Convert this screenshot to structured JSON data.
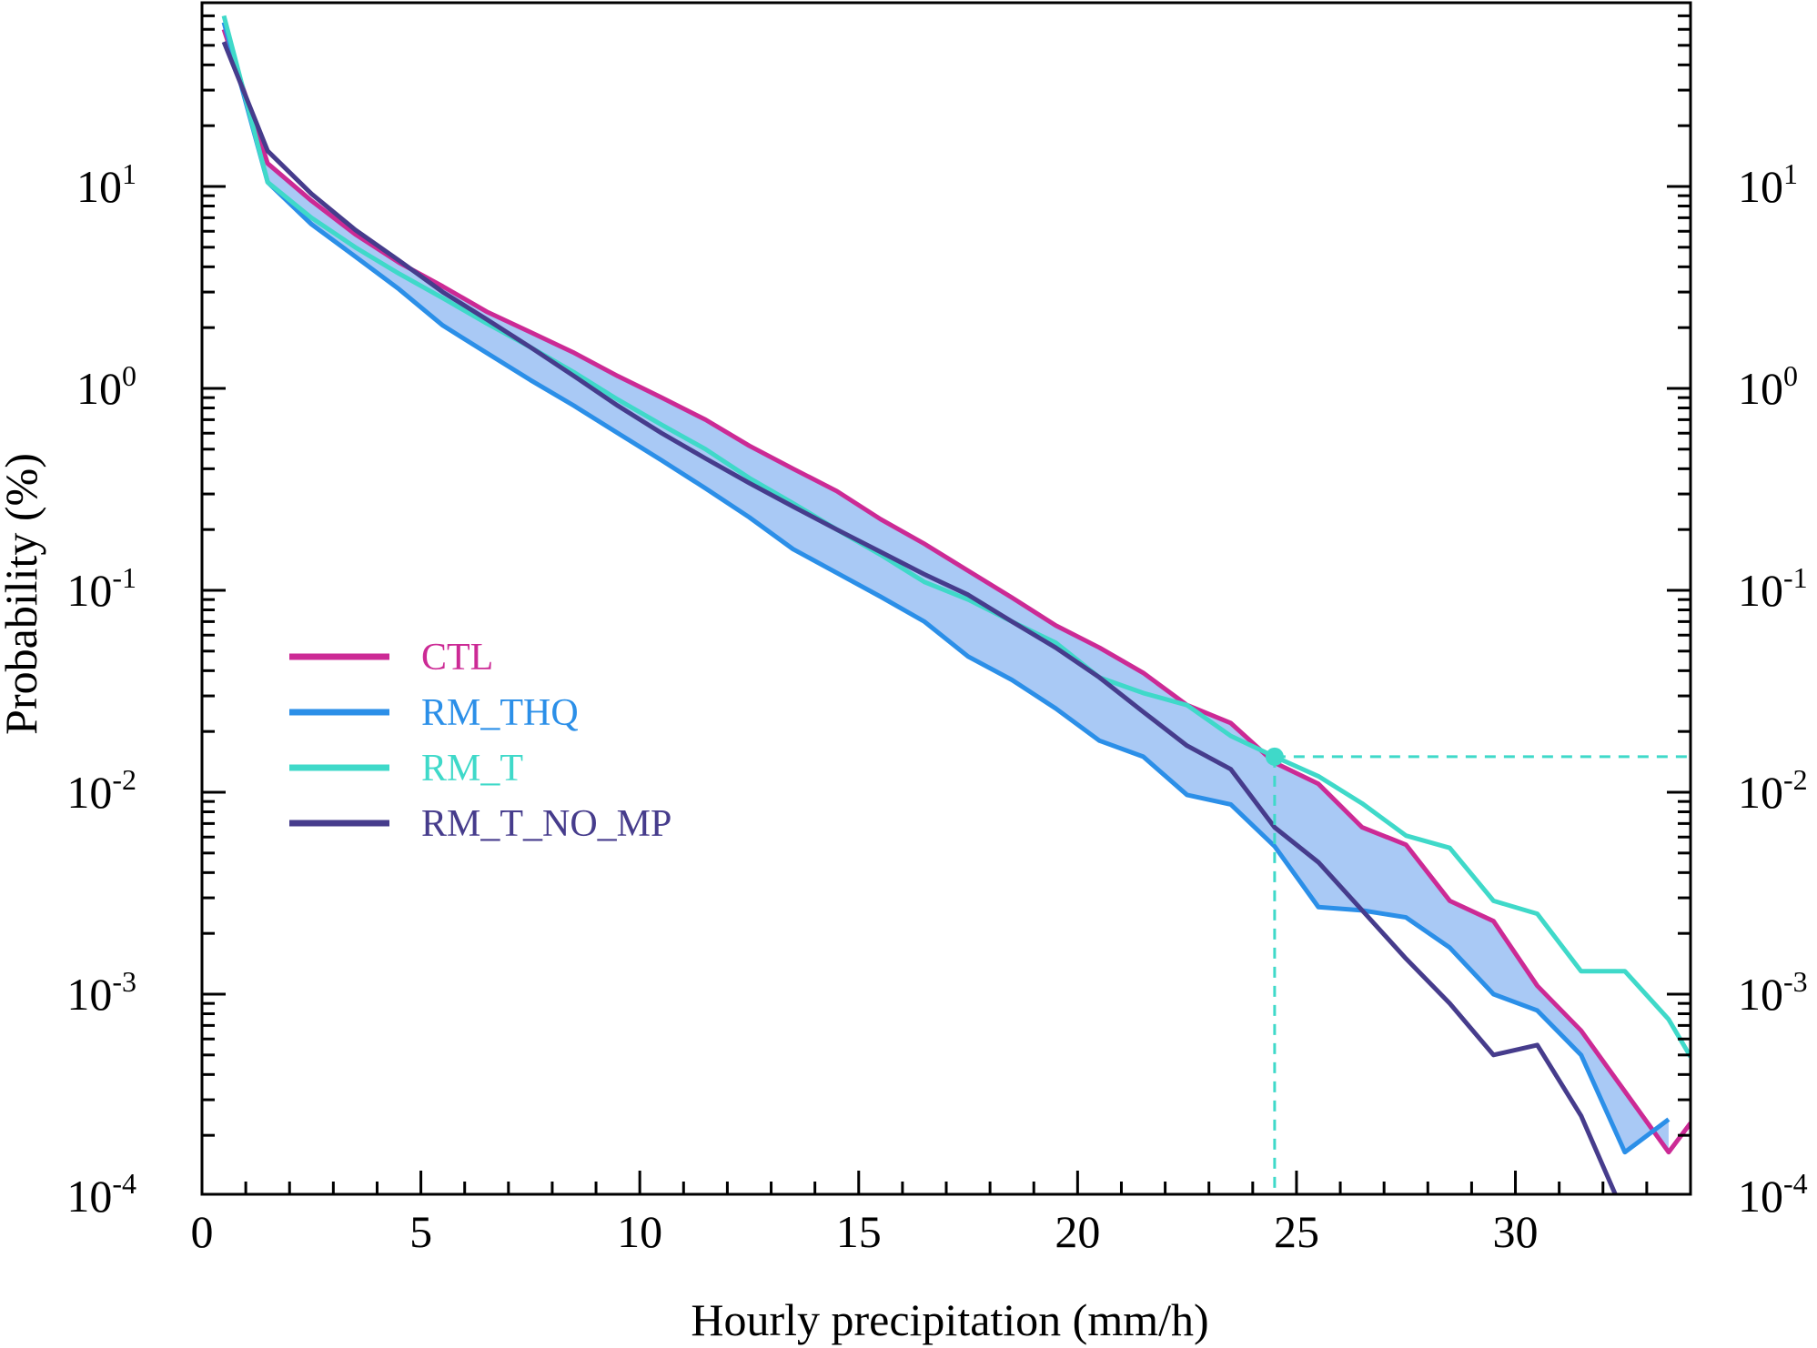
{
  "chart_data": {
    "type": "line",
    "xlabel": "Hourly precipitation (mm/h)",
    "ylabel": "Probability (%)",
    "xlim": [
      0,
      34
    ],
    "ylim": [
      0.0001,
      70
    ],
    "y_scale": "log",
    "x_ticks": [
      0,
      5,
      10,
      15,
      20,
      25,
      30
    ],
    "x_tick_labels": [
      "0",
      "5",
      "10",
      "15",
      "20",
      "25",
      "30"
    ],
    "y_ticks": [
      {
        "value": 10,
        "base": "10",
        "exp": "1"
      },
      {
        "value": 1,
        "base": "10",
        "exp": "0"
      },
      {
        "value": 0.1,
        "base": "10",
        "exp": "-1"
      },
      {
        "value": 0.01,
        "base": "10",
        "exp": "-2"
      },
      {
        "value": 0.001,
        "base": "10",
        "exp": "-3"
      },
      {
        "value": 0.0001,
        "base": "10",
        "exp": "-4"
      }
    ],
    "right_axis_ticks": true,
    "grid": false,
    "legend_position": "center-left",
    "series": [
      {
        "name": "CTL",
        "color": "#cc2a95",
        "x": [
          0.5,
          1.5,
          2.5,
          3.5,
          4.5,
          5.5,
          6.5,
          7.5,
          8.5,
          9.5,
          10.5,
          11.5,
          12.5,
          13.5,
          14.5,
          15.5,
          16.5,
          17.5,
          18.5,
          19.5,
          20.5,
          21.5,
          22.5,
          23.5,
          24.5,
          25.5,
          26.5,
          27.5,
          28.5,
          29.5,
          30.5,
          31.5,
          32.5,
          33.5,
          34
        ],
        "y": [
          60,
          13,
          8.5,
          5.8,
          4.2,
          3.2,
          2.4,
          1.9,
          1.5,
          1.15,
          0.9,
          0.7,
          0.52,
          0.4,
          0.31,
          0.225,
          0.17,
          0.125,
          0.092,
          0.067,
          0.052,
          0.039,
          0.027,
          0.022,
          0.014,
          0.011,
          0.0067,
          0.0055,
          0.0029,
          0.0023,
          0.0011,
          0.00066,
          0.00033,
          0.000165,
          0.00023
        ]
      },
      {
        "name": "RM_THQ",
        "color": "#2b8fe8",
        "x": [
          0.5,
          1.5,
          2.5,
          3.5,
          4.5,
          5.5,
          6.5,
          7.5,
          8.5,
          9.5,
          10.5,
          11.5,
          12.5,
          13.5,
          14.5,
          15.5,
          16.5,
          17.5,
          18.5,
          19.5,
          20.5,
          21.5,
          22.5,
          23.5,
          24.5,
          25.5,
          26.5,
          27.5,
          28.5,
          29.5,
          30.5,
          31.5,
          32.5,
          33.5
        ],
        "y": [
          65,
          10.5,
          6.5,
          4.5,
          3.1,
          2.05,
          1.5,
          1.1,
          0.82,
          0.6,
          0.44,
          0.32,
          0.23,
          0.16,
          0.122,
          0.093,
          0.07,
          0.047,
          0.036,
          0.026,
          0.018,
          0.015,
          0.0097,
          0.0087,
          0.0054,
          0.0027,
          0.0026,
          0.0024,
          0.0017,
          0.001,
          0.00083,
          0.0005,
          0.000165,
          0.00024
        ]
      },
      {
        "name": "RM_T",
        "color": "#3fd9c9",
        "x": [
          0.5,
          1.5,
          2.5,
          3.5,
          4.5,
          5.5,
          6.5,
          7.5,
          8.5,
          9.5,
          10.5,
          11.5,
          12.5,
          13.5,
          14.5,
          15.5,
          16.5,
          17.5,
          18.5,
          19.5,
          20.5,
          21.5,
          22.5,
          23.5,
          24.5,
          25.5,
          26.5,
          27.5,
          28.5,
          29.5,
          30.5,
          31.5,
          32.5,
          33.5,
          34
        ],
        "y": [
          70,
          10.5,
          7.0,
          5.0,
          3.7,
          2.8,
          2.1,
          1.6,
          1.2,
          0.88,
          0.66,
          0.5,
          0.36,
          0.27,
          0.2,
          0.15,
          0.11,
          0.09,
          0.07,
          0.055,
          0.037,
          0.031,
          0.027,
          0.019,
          0.015,
          0.012,
          0.0088,
          0.0061,
          0.0053,
          0.0029,
          0.0025,
          0.0013,
          0.0013,
          0.00075,
          0.00049
        ]
      },
      {
        "name": "RM_T_NO_MP",
        "color": "#463c8c",
        "x": [
          0.5,
          1.5,
          2.5,
          3.5,
          4.5,
          5.5,
          6.5,
          7.5,
          8.5,
          9.5,
          10.5,
          11.5,
          12.5,
          13.5,
          14.5,
          15.5,
          16.5,
          17.5,
          18.5,
          19.5,
          20.5,
          21.5,
          22.5,
          23.5,
          24.5,
          25.5,
          26.5,
          27.5,
          28.5,
          29.5,
          30.5,
          31.5,
          32.3
        ],
        "y": [
          52,
          15,
          9.2,
          6.1,
          4.3,
          3.0,
          2.2,
          1.6,
          1.15,
          0.82,
          0.6,
          0.45,
          0.34,
          0.26,
          0.2,
          0.155,
          0.12,
          0.095,
          0.07,
          0.052,
          0.037,
          0.025,
          0.017,
          0.013,
          0.0067,
          0.0045,
          0.0026,
          0.0015,
          0.0009,
          0.0005,
          0.00056,
          0.00025,
          0.0001
        ]
      }
    ],
    "shaded_band": {
      "color": "#a9c9f5",
      "between": [
        "CTL",
        "RM_THQ"
      ]
    },
    "reference_marker": {
      "series": "RM_T",
      "x": 24.5,
      "y": 0.015,
      "color": "#3fd9c9"
    }
  }
}
